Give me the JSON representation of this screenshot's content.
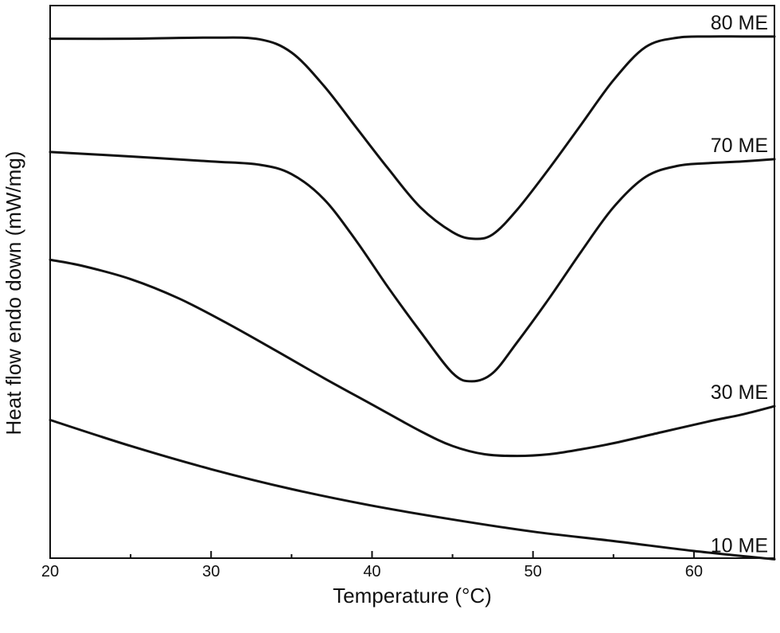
{
  "chart_data": {
    "type": "line",
    "title": "",
    "xlabel": "Temperature (°C)",
    "ylabel": "Heat flow endo down (mW/mg)",
    "xlim": [
      20,
      65
    ],
    "ylim": [
      0,
      100
    ],
    "x_major_ticks": [
      20,
      30,
      40,
      50,
      60
    ],
    "x_minor_ticks": [
      25,
      35,
      45,
      55,
      65
    ],
    "x_tick_labels": [
      "20",
      "30",
      "40",
      "50",
      "60"
    ],
    "y_tick_labels_shown": false,
    "grid": false,
    "legend": "none",
    "line_color": "#111111",
    "series": [
      {
        "name": "80 ME",
        "x": [
          20,
          25,
          30,
          33,
          35,
          37,
          39,
          41,
          43,
          45,
          46.3,
          47.5,
          49,
          51,
          53,
          55,
          57,
          59,
          61,
          63,
          65
        ],
        "y": [
          94.0,
          94.0,
          94.2,
          93.9,
          91.5,
          85.5,
          78.0,
          70.5,
          63.5,
          59.0,
          57.8,
          58.6,
          63.0,
          70.5,
          78.5,
          86.5,
          92.5,
          94.2,
          94.4,
          94.4,
          94.4
        ]
      },
      {
        "name": "70 ME",
        "x": [
          20,
          25,
          30,
          33,
          35,
          37,
          39,
          41,
          43,
          45,
          46.2,
          47.5,
          49,
          51,
          53,
          55,
          57,
          59,
          61,
          63,
          65
        ],
        "y": [
          73.5,
          72.7,
          71.8,
          71.2,
          69.5,
          65.0,
          57.5,
          49.0,
          41.0,
          33.5,
          32.0,
          33.5,
          39.0,
          47.0,
          55.5,
          63.5,
          69.0,
          71.0,
          71.5,
          71.8,
          72.2
        ]
      },
      {
        "name": "30 ME",
        "x": [
          20,
          22,
          25,
          28,
          31,
          34,
          37,
          40,
          43,
          45,
          47,
          49,
          51,
          53,
          55,
          58,
          61,
          63,
          65
        ],
        "y": [
          54.0,
          52.9,
          50.5,
          47.0,
          42.5,
          37.6,
          32.6,
          27.8,
          23.0,
          20.3,
          18.8,
          18.5,
          18.8,
          19.7,
          20.8,
          22.8,
          24.8,
          26.0,
          27.5
        ]
      },
      {
        "name": "10 ME",
        "x": [
          20,
          25,
          30,
          35,
          40,
          45,
          50,
          55,
          60,
          65
        ],
        "y": [
          25.0,
          20.3,
          16.1,
          12.5,
          9.5,
          7.0,
          4.8,
          3.1,
          1.3,
          -0.2
        ]
      }
    ]
  }
}
